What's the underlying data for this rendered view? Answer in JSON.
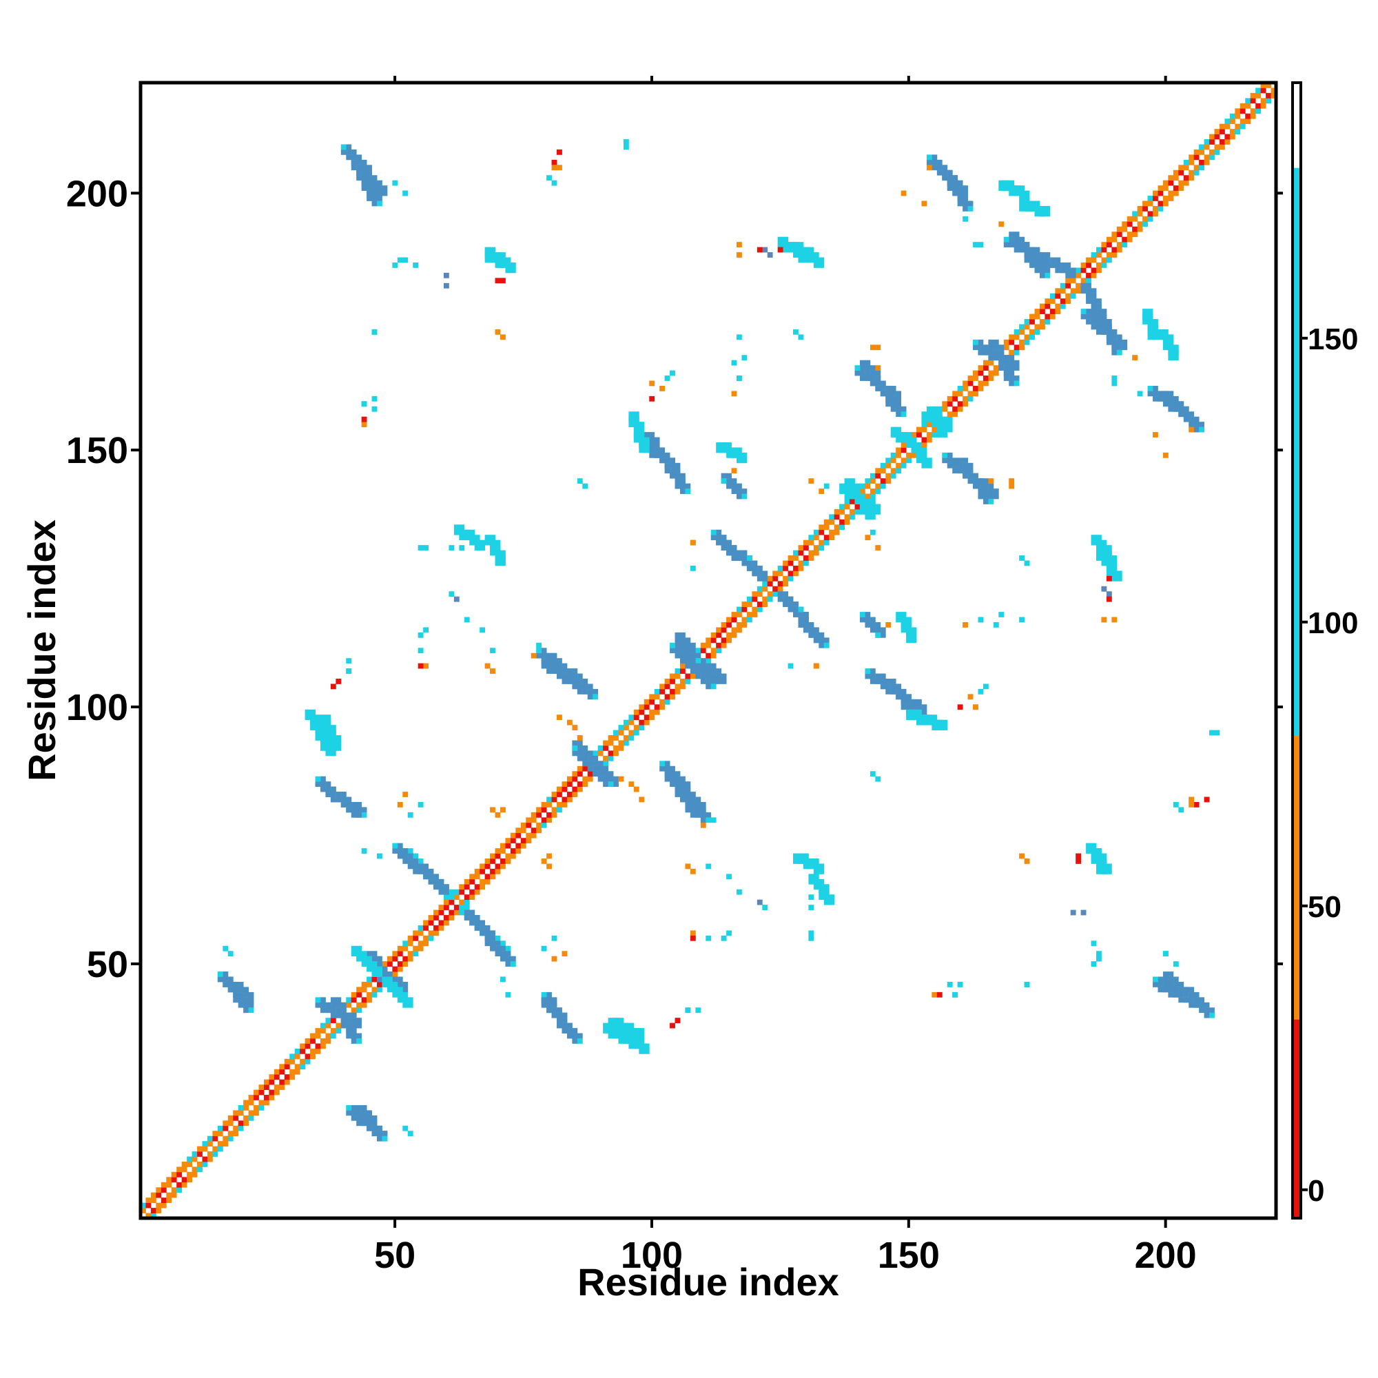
{
  "chart_data": {
    "type": "heatmap",
    "title": "",
    "xlabel": "Residue index",
    "ylabel": "Residue index",
    "xlim": [
      1,
      221
    ],
    "ylim": [
      1,
      221
    ],
    "x_ticks": [
      50,
      100,
      150,
      200
    ],
    "y_ticks": [
      50,
      100,
      150,
      200
    ],
    "grid": false,
    "legend": "colorbar-right",
    "colorbar": {
      "ticks": [
        0,
        50,
        100,
        150
      ],
      "range": [
        -5,
        195
      ],
      "bands": [
        {
          "from": -5,
          "to": 30,
          "color": "#e8120c"
        },
        {
          "from": 30,
          "to": 80,
          "color": "#f58a0a"
        },
        {
          "from": 80,
          "to": 180,
          "color": "#1ed2e6"
        },
        {
          "from": 180,
          "to": 195,
          "color": "#ffffff"
        }
      ]
    },
    "colors": {
      "red": "#e8120c",
      "orange": "#f58a0a",
      "cyan": "#1ed2e6",
      "blue": "#4a8fc4",
      "steel": "#5b86b8"
    },
    "diagonal": {
      "from": 1,
      "to": 221
    },
    "segments": [
      {
        "x0": 42,
        "y0": 206,
        "x1": 46,
        "y1": 199,
        "color": "blue"
      },
      {
        "x0": 157,
        "y0": 204,
        "x1": 161,
        "y1": 198,
        "color": "blue"
      },
      {
        "x0": 170,
        "y0": 192,
        "x1": 176,
        "y1": 185,
        "color": "blue"
      },
      {
        "x0": 184,
        "y0": 182,
        "x1": 190,
        "y1": 170,
        "color": "blue"
      },
      {
        "x0": 166,
        "y0": 171,
        "x1": 170,
        "y1": 164,
        "color": "blue"
      },
      {
        "x0": 141,
        "y0": 167,
        "x1": 148,
        "y1": 158,
        "color": "blue"
      },
      {
        "x0": 154,
        "y0": 158,
        "x1": 156,
        "y1": 154,
        "color": "cyan"
      },
      {
        "x0": 150,
        "y0": 152,
        "x1": 153,
        "y1": 148,
        "color": "cyan"
      },
      {
        "x0": 160,
        "y0": 148,
        "x1": 165,
        "y1": 141,
        "color": "blue"
      },
      {
        "x0": 200,
        "y0": 161,
        "x1": 206,
        "y1": 155,
        "color": "blue"
      },
      {
        "x0": 99,
        "y0": 153,
        "x1": 106,
        "y1": 143,
        "color": "blue"
      },
      {
        "x0": 113,
        "y0": 133,
        "x1": 120,
        "y1": 127,
        "color": "blue"
      },
      {
        "x0": 125,
        "y0": 122,
        "x1": 133,
        "y1": 113,
        "color": "blue"
      },
      {
        "x0": 105,
        "y0": 114,
        "x1": 108,
        "y1": 110,
        "color": "blue"
      },
      {
        "x0": 108,
        "y0": 108,
        "x1": 111,
        "y1": 105,
        "color": "blue"
      },
      {
        "x0": 79,
        "y0": 109,
        "x1": 88,
        "y1": 103,
        "color": "blue"
      },
      {
        "x0": 146,
        "y0": 105,
        "x1": 152,
        "y1": 98,
        "color": "blue"
      },
      {
        "x0": 150,
        "y0": 99,
        "x1": 156,
        "y1": 97,
        "color": "cyan"
      },
      {
        "x0": 85,
        "y0": 93,
        "x1": 91,
        "y1": 86,
        "color": "blue"
      },
      {
        "x0": 104,
        "y0": 87,
        "x1": 110,
        "y1": 79,
        "color": "blue"
      },
      {
        "x0": 37,
        "y0": 84,
        "x1": 43,
        "y1": 80,
        "color": "blue"
      },
      {
        "x0": 36,
        "y0": 98,
        "x1": 38,
        "y1": 93,
        "color": "cyan"
      },
      {
        "x0": 52,
        "y0": 72,
        "x1": 60,
        "y1": 64,
        "color": "cyan"
      },
      {
        "x0": 64,
        "y0": 60,
        "x1": 72,
        "y1": 51,
        "color": "blue"
      },
      {
        "x0": 45,
        "y0": 52,
        "x1": 47,
        "y1": 48,
        "color": "blue"
      },
      {
        "x0": 48,
        "y0": 47,
        "x1": 52,
        "y1": 43,
        "color": "cyan"
      },
      {
        "x0": 38,
        "y0": 43,
        "x1": 42,
        "y1": 36,
        "color": "blue"
      },
      {
        "x0": 16,
        "y0": 48,
        "x1": 21,
        "y1": 42,
        "color": "blue"
      },
      {
        "x0": 79,
        "y0": 43,
        "x1": 85,
        "y1": 36,
        "color": "blue"
      },
      {
        "x0": 91,
        "y0": 38,
        "x1": 98,
        "y1": 34,
        "color": "cyan"
      },
      {
        "x0": 43,
        "y0": 22,
        "x1": 47,
        "y1": 17,
        "color": "blue"
      },
      {
        "x0": 200,
        "y0": 48,
        "x1": 208,
        "y1": 41,
        "color": "blue"
      },
      {
        "x0": 131,
        "y0": 67,
        "x1": 134,
        "y1": 63,
        "color": "cyan"
      },
      {
        "x0": 186,
        "y0": 72,
        "x1": 188,
        "y1": 69,
        "color": "cyan"
      },
      {
        "x0": 187,
        "y0": 130,
        "x1": 190,
        "y1": 126,
        "color": "cyan"
      },
      {
        "x0": 68,
        "y0": 133,
        "x1": 70,
        "y1": 129,
        "color": "cyan"
      },
      {
        "x0": 68,
        "y0": 188,
        "x1": 72,
        "y1": 186,
        "color": "cyan"
      },
      {
        "x0": 128,
        "y0": 190,
        "x1": 132,
        "y1": 187,
        "color": "cyan"
      },
      {
        "x0": 172,
        "y0": 198,
        "x1": 176,
        "y1": 197,
        "color": "cyan"
      },
      {
        "x0": 199,
        "y0": 173,
        "x1": 201,
        "y1": 169,
        "color": "cyan"
      },
      {
        "x0": 114,
        "y0": 145,
        "x1": 117,
        "y1": 142,
        "color": "blue"
      },
      {
        "x0": 138,
        "y0": 144,
        "x1": 142,
        "y1": 138,
        "color": "cyan"
      },
      {
        "x0": 148,
        "y0": 118,
        "x1": 150,
        "y1": 114,
        "color": "cyan"
      }
    ],
    "points": [
      {
        "x": 95,
        "y": 209,
        "color": "cyan"
      },
      {
        "x": 52,
        "y": 200,
        "color": "cyan"
      },
      {
        "x": 81,
        "y": 206,
        "color": "red"
      },
      {
        "x": 82,
        "y": 205,
        "color": "orange"
      },
      {
        "x": 80,
        "y": 203,
        "color": "cyan"
      },
      {
        "x": 51,
        "y": 187,
        "color": "cyan"
      },
      {
        "x": 50,
        "y": 186,
        "color": "cyan"
      },
      {
        "x": 60,
        "y": 182,
        "color": "steel"
      },
      {
        "x": 70,
        "y": 183,
        "color": "red"
      },
      {
        "x": 46,
        "y": 173,
        "color": "cyan"
      },
      {
        "x": 70,
        "y": 173,
        "color": "orange"
      },
      {
        "x": 44,
        "y": 159,
        "color": "cyan"
      },
      {
        "x": 46,
        "y": 158,
        "color": "cyan"
      },
      {
        "x": 44,
        "y": 155,
        "color": "orange"
      },
      {
        "x": 117,
        "y": 190,
        "color": "orange"
      },
      {
        "x": 122,
        "y": 189,
        "color": "steel"
      },
      {
        "x": 125,
        "y": 189,
        "color": "red"
      },
      {
        "x": 129,
        "y": 172,
        "color": "cyan"
      },
      {
        "x": 117,
        "y": 172,
        "color": "cyan"
      },
      {
        "x": 118,
        "y": 168,
        "color": "cyan"
      },
      {
        "x": 117,
        "y": 164,
        "color": "orange"
      },
      {
        "x": 100,
        "y": 163,
        "color": "orange"
      },
      {
        "x": 103,
        "y": 164,
        "color": "cyan"
      },
      {
        "x": 153,
        "y": 198,
        "color": "orange"
      },
      {
        "x": 163,
        "y": 190,
        "color": "cyan"
      },
      {
        "x": 168,
        "y": 194,
        "color": "orange"
      },
      {
        "x": 190,
        "y": 164,
        "color": "cyan"
      },
      {
        "x": 195,
        "y": 161,
        "color": "cyan"
      },
      {
        "x": 205,
        "y": 154,
        "color": "orange"
      },
      {
        "x": 200,
        "y": 149,
        "color": "orange"
      },
      {
        "x": 144,
        "y": 170,
        "color": "orange"
      },
      {
        "x": 144,
        "y": 166,
        "color": "orange"
      },
      {
        "x": 87,
        "y": 143,
        "color": "cyan"
      },
      {
        "x": 133,
        "y": 142,
        "color": "orange"
      },
      {
        "x": 143,
        "y": 134,
        "color": "cyan"
      },
      {
        "x": 144,
        "y": 131,
        "color": "orange"
      },
      {
        "x": 170,
        "y": 143,
        "color": "orange"
      },
      {
        "x": 173,
        "y": 128,
        "color": "cyan"
      },
      {
        "x": 108,
        "y": 132,
        "color": "orange"
      },
      {
        "x": 56,
        "y": 131,
        "color": "cyan"
      },
      {
        "x": 63,
        "y": 131,
        "color": "cyan"
      },
      {
        "x": 61,
        "y": 122,
        "color": "cyan"
      },
      {
        "x": 64,
        "y": 117,
        "color": "cyan"
      },
      {
        "x": 56,
        "y": 115,
        "color": "cyan"
      },
      {
        "x": 56,
        "y": 108,
        "color": "orange"
      },
      {
        "x": 69,
        "y": 111,
        "color": "cyan"
      },
      {
        "x": 68,
        "y": 108,
        "color": "orange"
      },
      {
        "x": 41,
        "y": 107,
        "color": "orange"
      },
      {
        "x": 39,
        "y": 105,
        "color": "red"
      },
      {
        "x": 41,
        "y": 109,
        "color": "cyan"
      },
      {
        "x": 82,
        "y": 98,
        "color": "orange"
      },
      {
        "x": 84,
        "y": 97,
        "color": "orange"
      },
      {
        "x": 94,
        "y": 86,
        "color": "orange"
      },
      {
        "x": 96,
        "y": 85,
        "color": "orange"
      },
      {
        "x": 51,
        "y": 81,
        "color": "orange"
      },
      {
        "x": 53,
        "y": 79,
        "color": "cyan"
      },
      {
        "x": 70,
        "y": 79,
        "color": "orange"
      },
      {
        "x": 44,
        "y": 72,
        "color": "cyan"
      },
      {
        "x": 80,
        "y": 71,
        "color": "orange"
      },
      {
        "x": 80,
        "y": 69,
        "color": "orange"
      },
      {
        "x": 110,
        "y": 77,
        "color": "orange"
      },
      {
        "x": 112,
        "y": 78,
        "color": "cyan"
      },
      {
        "x": 115,
        "y": 67,
        "color": "cyan"
      },
      {
        "x": 107,
        "y": 69,
        "color": "orange"
      },
      {
        "x": 121,
        "y": 62,
        "color": "steel"
      },
      {
        "x": 131,
        "y": 61,
        "color": "cyan"
      },
      {
        "x": 131,
        "y": 55,
        "color": "cyan"
      },
      {
        "x": 108,
        "y": 55,
        "color": "red"
      },
      {
        "x": 111,
        "y": 55,
        "color": "cyan"
      },
      {
        "x": 114,
        "y": 55,
        "color": "cyan"
      },
      {
        "x": 83,
        "y": 52,
        "color": "orange"
      },
      {
        "x": 81,
        "y": 55,
        "color": "cyan"
      },
      {
        "x": 71,
        "y": 47,
        "color": "cyan"
      },
      {
        "x": 107,
        "y": 41,
        "color": "cyan"
      },
      {
        "x": 104,
        "y": 38,
        "color": "red"
      },
      {
        "x": 53,
        "y": 17,
        "color": "cyan"
      },
      {
        "x": 18,
        "y": 52,
        "color": "cyan"
      },
      {
        "x": 129,
        "y": 119,
        "color": "cyan"
      },
      {
        "x": 132,
        "y": 108,
        "color": "orange"
      },
      {
        "x": 127,
        "y": 108,
        "color": "cyan"
      },
      {
        "x": 146,
        "y": 116,
        "color": "orange"
      },
      {
        "x": 144,
        "y": 114,
        "color": "cyan"
      },
      {
        "x": 144,
        "y": 86,
        "color": "cyan"
      },
      {
        "x": 161,
        "y": 116,
        "color": "orange"
      },
      {
        "x": 164,
        "y": 117,
        "color": "cyan"
      },
      {
        "x": 167,
        "y": 116,
        "color": "cyan"
      },
      {
        "x": 165,
        "y": 104,
        "color": "cyan"
      },
      {
        "x": 162,
        "y": 102,
        "color": "orange"
      },
      {
        "x": 160,
        "y": 100,
        "color": "red"
      },
      {
        "x": 188,
        "y": 123,
        "color": "steel"
      },
      {
        "x": 189,
        "y": 121,
        "color": "red"
      },
      {
        "x": 188,
        "y": 117,
        "color": "orange"
      },
      {
        "x": 210,
        "y": 95,
        "color": "cyan"
      },
      {
        "x": 208,
        "y": 82,
        "color": "red"
      },
      {
        "x": 205,
        "y": 81,
        "color": "orange"
      },
      {
        "x": 202,
        "y": 81,
        "color": "cyan"
      },
      {
        "x": 172,
        "y": 71,
        "color": "orange"
      },
      {
        "x": 183,
        "y": 71,
        "color": "red"
      },
      {
        "x": 184,
        "y": 60,
        "color": "steel"
      },
      {
        "x": 186,
        "y": 54,
        "color": "cyan"
      },
      {
        "x": 187,
        "y": 52,
        "color": "cyan"
      },
      {
        "x": 200,
        "y": 52,
        "color": "cyan"
      },
      {
        "x": 156,
        "y": 44,
        "color": "red"
      },
      {
        "x": 159,
        "y": 44,
        "color": "cyan"
      },
      {
        "x": 160,
        "y": 46,
        "color": "cyan"
      },
      {
        "x": 173,
        "y": 46,
        "color": "cyan"
      },
      {
        "x": 202,
        "y": 50,
        "color": "cyan"
      }
    ]
  }
}
